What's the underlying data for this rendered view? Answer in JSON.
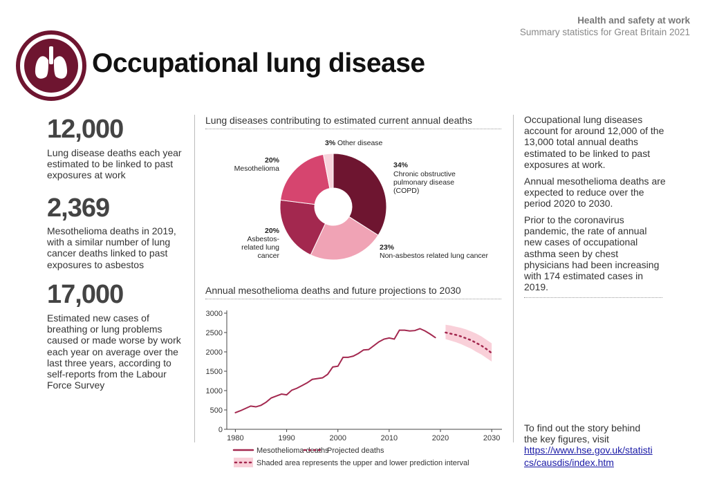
{
  "header": {
    "org": "Health and safety at work",
    "subtitle": "Summary statistics for Great Britain 2021",
    "title": "Occupational lung disease"
  },
  "key_figures": [
    {
      "figure": "12,000",
      "text": "Lung disease deaths each year estimated to be linked to past exposures at work"
    },
    {
      "figure": "2,369",
      "text": "Mesothelioma deaths in 2019, with a similar number of lung cancer deaths linked to past exposures to asbestos"
    },
    {
      "figure": "17,000",
      "text": "Estimated new cases of breathing or lung problems caused or made worse by work each year on average over the last three years, according to self-reports from the Labour Force Survey"
    }
  ],
  "chart_data": [
    {
      "type": "pie",
      "title": "Lung diseases contributing to estimated current annual deaths",
      "categories": [
        "Chronic obstructive pulmonary disease (COPD)",
        "Non-asbestos related lung cancer",
        "Asbestos-related lung cancer",
        "Mesothelioma",
        "Other disease"
      ],
      "values": [
        34,
        23,
        20,
        20,
        3
      ],
      "value_labels": [
        "34%",
        "23%",
        "20%",
        "20%",
        "3%"
      ],
      "colors": [
        "#6e1530",
        "#f0a3b5",
        "#a3284f",
        "#d6456f",
        "#f8d3dc"
      ]
    },
    {
      "type": "line",
      "title": "Annual mesothelioma deaths and future projections to 2030",
      "xlim": [
        1979,
        2032
      ],
      "xticks": [
        1980,
        1990,
        2000,
        2010,
        2020,
        2030
      ],
      "ylim": [
        0,
        3000
      ],
      "yticks": [
        0,
        500,
        1000,
        1500,
        2000,
        2500,
        3000
      ],
      "series": [
        {
          "name": "Mesothelioma deaths",
          "color": "#a3284f",
          "style": "solid",
          "x": [
            1980,
            1981,
            1982,
            1983,
            1984,
            1985,
            1986,
            1987,
            1988,
            1989,
            1990,
            1991,
            1992,
            1993,
            1994,
            1995,
            1996,
            1997,
            1998,
            1999,
            2000,
            2001,
            2002,
            2003,
            2004,
            2005,
            2006,
            2007,
            2008,
            2009,
            2010,
            2011,
            2012,
            2013,
            2014,
            2015,
            2016,
            2017,
            2018,
            2019
          ],
          "values": [
            430,
            480,
            540,
            600,
            580,
            620,
            700,
            810,
            860,
            910,
            890,
            1010,
            1060,
            1130,
            1200,
            1290,
            1310,
            1330,
            1420,
            1610,
            1630,
            1860,
            1860,
            1890,
            1960,
            2050,
            2060,
            2160,
            2260,
            2330,
            2360,
            2330,
            2560,
            2560,
            2540,
            2550,
            2600,
            2540,
            2460,
            2369
          ]
        },
        {
          "name": "Projected deaths",
          "color": "#a3284f",
          "style": "dotted",
          "x": [
            2021,
            2022,
            2023,
            2024,
            2025,
            2026,
            2027,
            2028,
            2029,
            2030
          ],
          "values": [
            2500,
            2470,
            2440,
            2400,
            2350,
            2300,
            2230,
            2160,
            2070,
            1970
          ]
        }
      ],
      "interval": {
        "name": "Shaded area represents the upper and lower prediction interval",
        "color": "#f9d0d9",
        "x": [
          2021,
          2022,
          2023,
          2024,
          2025,
          2026,
          2027,
          2028,
          2029,
          2030
        ],
        "upper": [
          2700,
          2680,
          2650,
          2620,
          2580,
          2530,
          2470,
          2400,
          2310,
          2220
        ],
        "lower": [
          2330,
          2290,
          2250,
          2200,
          2140,
          2080,
          2000,
          1930,
          1840,
          1750
        ]
      }
    }
  ],
  "sidebar": {
    "paragraphs": [
      "Occupational lung diseases account for around 12,000 of the 13,000 total annual deaths estimated to be linked to past exposures at work.",
      "Annual mesothelioma deaths are expected to reduce over the period 2020 to 2030.",
      "Prior to the coronavirus pandemic, the rate of annual new cases of occupational asthma seen by chest physicians had been increasing with 174 estimated cases in 2019."
    ],
    "link_intro": "To find out the story behind the key figures, visit",
    "link": "https://www.hse.gov.uk/statistics/causdis/index.htm"
  }
}
